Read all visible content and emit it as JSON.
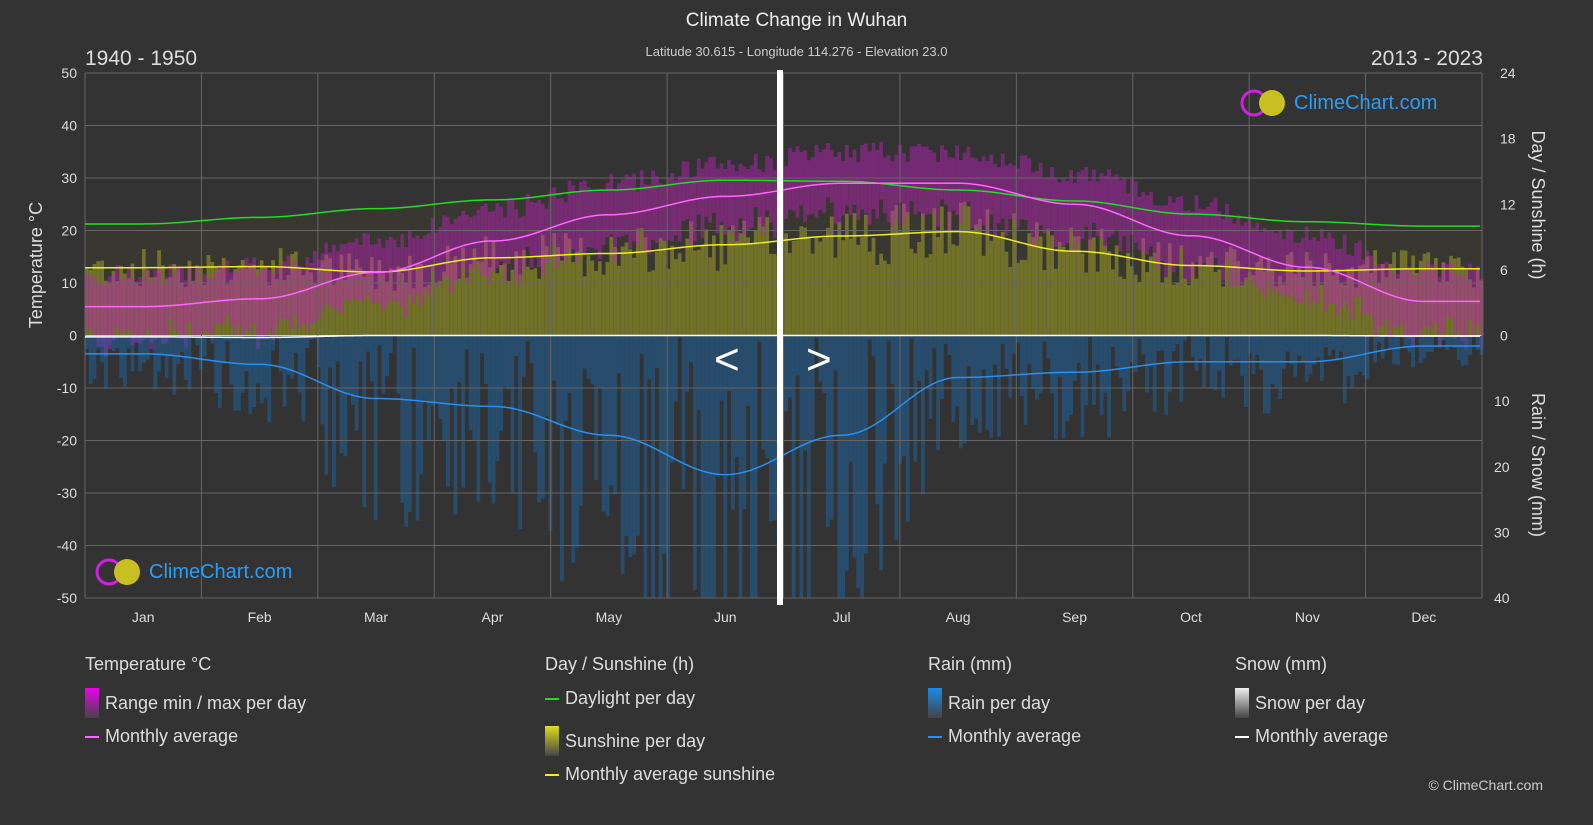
{
  "header": {
    "title": "Climate Change in Wuhan",
    "subtitle": "Latitude 30.615 - Longitude 114.276 - Elevation 23.0",
    "period_left": "1940 - 1950",
    "period_right": "2013 - 2023"
  },
  "logo_text": "ClimeChart.com",
  "copyright": "© ClimeChart.com",
  "nav": {
    "prev": "<",
    "next": ">"
  },
  "chart_data": {
    "type": "area",
    "title": "Climate Change in Wuhan",
    "categories": [
      "Jan",
      "Feb",
      "Mar",
      "Apr",
      "May",
      "Jun",
      "Jul",
      "Aug",
      "Sep",
      "Oct",
      "Nov",
      "Dec"
    ],
    "y_left": {
      "label": "Temperature °C",
      "range": [
        -50,
        50
      ],
      "ticks": [
        50,
        40,
        30,
        20,
        10,
        0,
        -10,
        -20,
        -30,
        -40,
        -50
      ]
    },
    "y_right_top": {
      "label": "Day / Sunshine (h)",
      "range": [
        0,
        24
      ],
      "ticks": [
        24,
        18,
        12,
        6,
        0
      ]
    },
    "y_right_bottom": {
      "label": "Rain / Snow (mm)",
      "range": [
        0,
        40
      ],
      "ticks": [
        0,
        10,
        20,
        30,
        40
      ]
    },
    "grid": true,
    "series": [
      {
        "name": "Monthly average",
        "group": "Temperature °C",
        "color": "#ff66ff",
        "values": [
          5.5,
          7,
          12,
          18,
          23,
          26.5,
          29,
          29,
          25,
          19,
          13,
          6.5
        ]
      },
      {
        "name": "Daylight per day",
        "group": "Day / Sunshine (h)",
        "color": "#22dd22",
        "values": [
          10.2,
          10.8,
          11.6,
          12.4,
          13.3,
          14.2,
          14.1,
          13.3,
          12.3,
          11.1,
          10.4,
          10.0
        ]
      },
      {
        "name": "Monthly average sunshine",
        "group": "Day / Sunshine (h)",
        "color": "#eeee22",
        "values": [
          6.2,
          6.3,
          5.8,
          7.1,
          7.5,
          8.3,
          9.1,
          9.5,
          7.7,
          6.4,
          5.9,
          6.1
        ]
      },
      {
        "name": "Monthly average",
        "group": "Rain (mm)",
        "color": "#2a8ff0",
        "values": [
          2.8,
          4.4,
          9.6,
          10.8,
          15.2,
          21.2,
          15.2,
          6.4,
          5.6,
          4.0,
          4.0,
          1.6
        ]
      },
      {
        "name": "Monthly average",
        "group": "Snow (mm)",
        "color": "#ffffff",
        "values": [
          0.2,
          0.3,
          0,
          0,
          0,
          0,
          0,
          0,
          0,
          0,
          0,
          0.1
        ]
      }
    ]
  },
  "legend": [
    {
      "title": "Temperature °C",
      "items": [
        {
          "label": "Range min / max per day",
          "type": "bar",
          "color": "#ee00ee"
        },
        {
          "label": "Monthly average",
          "type": "line",
          "color": "#ff66ff"
        }
      ]
    },
    {
      "title": "Day / Sunshine (h)",
      "items": [
        {
          "label": "Daylight per day",
          "type": "line",
          "color": "#22dd22"
        },
        {
          "label": "Sunshine per day",
          "type": "bar",
          "color": "#dddd22"
        },
        {
          "label": "Monthly average sunshine",
          "type": "line",
          "color": "#eeee22"
        }
      ]
    },
    {
      "title": "Rain (mm)",
      "items": [
        {
          "label": "Rain per day",
          "type": "bar",
          "color": "#1a8ae8"
        },
        {
          "label": "Monthly average",
          "type": "line",
          "color": "#2a8ff0"
        }
      ]
    },
    {
      "title": "Snow (mm)",
      "items": [
        {
          "label": "Snow per day",
          "type": "bar",
          "color": "#eeeeee"
        },
        {
          "label": "Monthly average",
          "type": "line",
          "color": "#ffffff"
        }
      ]
    }
  ]
}
